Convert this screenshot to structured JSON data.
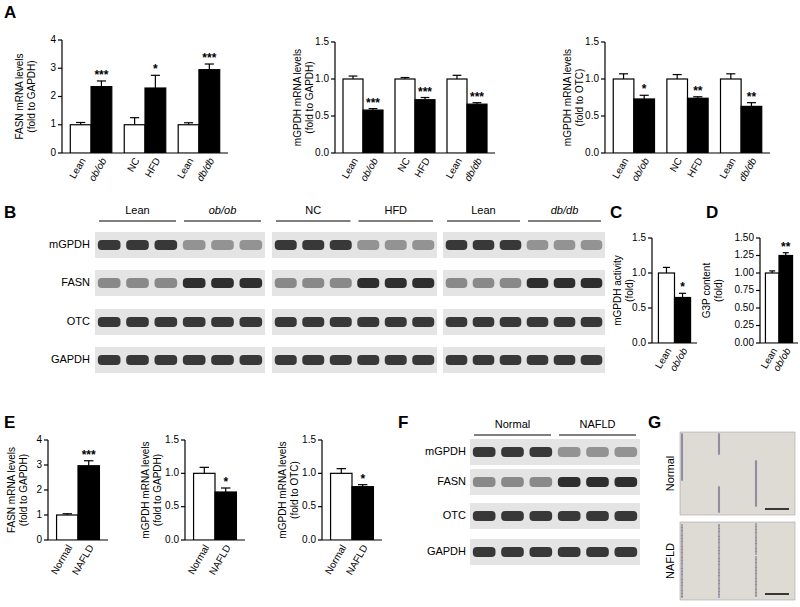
{
  "chart_data": [
    {
      "type": "bar",
      "ylabel": [
        "FASN mRNA levels",
        "(fold to GAPDH)"
      ],
      "categories": [
        "Lean",
        "ob/ob",
        "NC",
        "HFD",
        "Lean",
        "db/db"
      ],
      "values": [
        1.0,
        2.35,
        1.0,
        2.3,
        1.0,
        2.95
      ],
      "errors": [
        0.08,
        0.2,
        0.25,
        0.45,
        0.07,
        0.2
      ],
      "colors": [
        "#ffffff",
        "#000000",
        "#ffffff",
        "#000000",
        "#ffffff",
        "#000000"
      ],
      "annotations": [
        null,
        "***",
        null,
        "*",
        null,
        "***"
      ],
      "ylim": [
        0,
        4
      ],
      "yticks": [
        0,
        1,
        2,
        3,
        4
      ],
      "grid": false
    },
    {
      "type": "bar",
      "ylabel": [
        "mGPDH mRNA levels",
        "(fold to GAPDH)"
      ],
      "categories": [
        "Lean",
        "ob/ob",
        "NC",
        "HFD",
        "Lean",
        "db/db"
      ],
      "values": [
        1.0,
        0.58,
        1.0,
        0.72,
        1.0,
        0.66
      ],
      "errors": [
        0.04,
        0.02,
        0.02,
        0.03,
        0.05,
        0.02
      ],
      "colors": [
        "#ffffff",
        "#000000",
        "#ffffff",
        "#000000",
        "#ffffff",
        "#000000"
      ],
      "annotations": [
        null,
        "***",
        null,
        "***",
        null,
        "***"
      ],
      "ylim": [
        0,
        1.5
      ],
      "yticks": [
        {
          "value": 0,
          "label": "0.0"
        },
        0.5,
        {
          "value": 1,
          "label": "1.0"
        },
        1.5
      ],
      "grid": false
    },
    {
      "type": "bar",
      "ylabel": [
        "mGPDH mRNA levels",
        "(fold to OTC)"
      ],
      "categories": [
        "Lean",
        "ob/ob",
        "NC",
        "HFD",
        "Lean",
        "db/db"
      ],
      "values": [
        1.0,
        0.73,
        1.0,
        0.74,
        1.0,
        0.63
      ],
      "errors": [
        0.07,
        0.05,
        0.06,
        0.02,
        0.07,
        0.05
      ],
      "colors": [
        "#ffffff",
        "#000000",
        "#ffffff",
        "#000000",
        "#ffffff",
        "#000000"
      ],
      "annotations": [
        null,
        "*",
        null,
        "**",
        null,
        "**"
      ],
      "ylim": [
        0,
        1.5
      ],
      "yticks": [
        {
          "value": 0,
          "label": "0.0"
        },
        0.5,
        {
          "value": 1,
          "label": "1.0"
        },
        1.5
      ],
      "grid": false
    },
    {
      "type": "bar",
      "ylabel": [
        "mGPDH activity",
        "(fold)"
      ],
      "categories": [
        "Lean",
        "ob/ob"
      ],
      "values": [
        1.0,
        0.65
      ],
      "errors": [
        0.08,
        0.06
      ],
      "colors": [
        "#ffffff",
        "#000000"
      ],
      "annotations": [
        null,
        "*"
      ],
      "ylim": [
        0,
        1.5
      ],
      "yticks": [
        {
          "value": 0,
          "label": "0.0"
        },
        0.5,
        {
          "value": 1,
          "label": "1.0"
        },
        1.5
      ],
      "grid": false
    },
    {
      "type": "bar",
      "ylabel": [
        "G3P content",
        "(fold)"
      ],
      "categories": [
        "Lean",
        "ob/ob"
      ],
      "values": [
        1.0,
        1.25
      ],
      "errors": [
        0.03,
        0.04
      ],
      "colors": [
        "#ffffff",
        "#000000"
      ],
      "annotations": [
        null,
        "**"
      ],
      "ylim": [
        0,
        1.5
      ],
      "yticks": [
        {
          "value": 0,
          "label": "0.00"
        },
        0.25,
        {
          "value": 0.5,
          "label": "0.50"
        },
        0.75,
        {
          "value": 1,
          "label": "1.00"
        },
        1.25,
        {
          "value": 1.5,
          "label": "1.50"
        }
      ],
      "grid": false
    },
    {
      "type": "bar",
      "ylabel": [
        "FASN mRNA levels",
        "(fold to GAPDH)"
      ],
      "categories": [
        "Normal",
        "NAFLD"
      ],
      "values": [
        1.0,
        2.97
      ],
      "errors": [
        0.05,
        0.2
      ],
      "colors": [
        "#ffffff",
        "#000000"
      ],
      "annotations": [
        null,
        "***"
      ],
      "ylim": [
        0,
        4
      ],
      "yticks": [
        0,
        1,
        2,
        3,
        4
      ],
      "grid": false
    },
    {
      "type": "bar",
      "ylabel": [
        "mGPDH mRNA levels",
        "(fold to GAPDH)"
      ],
      "categories": [
        "Normal",
        "NAFLD"
      ],
      "values": [
        1.0,
        0.72
      ],
      "errors": [
        0.09,
        0.06
      ],
      "colors": [
        "#ffffff",
        "#000000"
      ],
      "annotations": [
        null,
        "*"
      ],
      "ylim": [
        0,
        1.5
      ],
      "yticks": [
        {
          "value": 0,
          "label": "0.0"
        },
        0.5,
        {
          "value": 1,
          "label": "1.0"
        },
        1.5
      ],
      "grid": false
    },
    {
      "type": "bar",
      "ylabel": [
        "mGPDH mRNA levels",
        "(fold to OTC)"
      ],
      "categories": [
        "Normal",
        "NAFLD"
      ],
      "values": [
        1.0,
        0.8
      ],
      "errors": [
        0.07,
        0.03
      ],
      "colors": [
        "#ffffff",
        "#000000"
      ],
      "annotations": [
        null,
        "*"
      ],
      "ylim": [
        0,
        1.5
      ],
      "yticks": [
        {
          "value": 0,
          "label": "0.0"
        },
        0.5,
        {
          "value": 1,
          "label": "1.0"
        },
        1.5
      ],
      "grid": false
    }
  ],
  "panel_labels": [
    "A",
    "B",
    "C",
    "D",
    "E",
    "F",
    "G"
  ],
  "blots": [
    {
      "rows": [
        "mGPDH",
        "FASN",
        "OTC",
        "GAPDH"
      ],
      "sets": [
        {
          "groups": [
            {
              "label": "Lean",
              "lanes": 3
            },
            {
              "label": "ob/ob",
              "lanes": 3
            }
          ]
        },
        {
          "groups": [
            {
              "label": "NC",
              "lanes": 3
            },
            {
              "label": "HFD",
              "lanes": 3
            }
          ]
        },
        {
          "groups": [
            {
              "label": "Lean",
              "lanes": 3
            },
            {
              "label": "db/db",
              "lanes": 3
            }
          ]
        }
      ]
    },
    {
      "rows": [
        "mGPDH",
        "FASN",
        "OTC",
        "GAPDH"
      ],
      "sets": [
        {
          "groups": [
            {
              "label": "Normal",
              "lanes": 3
            },
            {
              "label": "NAFLD",
              "lanes": 3
            }
          ]
        }
      ]
    }
  ],
  "histology": {
    "labels": [
      "Normal",
      "NAFLD"
    ]
  }
}
